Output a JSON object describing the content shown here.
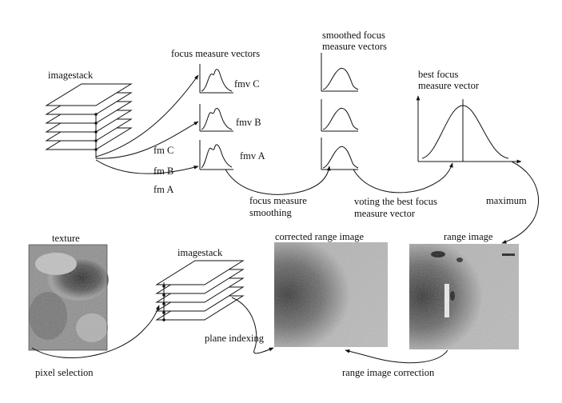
{
  "labels": {
    "imagestack_top": "imagestack",
    "focus_measure_vectors": "focus measure vectors",
    "smoothed_line1": "smoothed focus",
    "smoothed_line2": "measure vectors",
    "best_line1": "best focus",
    "best_line2": "measure vector",
    "fmv_c": "fmv C",
    "fmv_b": "fmv B",
    "fmv_a": "fmv A",
    "fm_c": "fm C",
    "fm_b": "fm B",
    "fm_a": "fm A",
    "fms_line1": "focus measure",
    "fms_line2": "smoothing",
    "voting_line1": "voting the best focus",
    "voting_line2": "measure vector",
    "maximum": "maximum",
    "texture": "texture",
    "imagestack_bottom": "imagestack",
    "corrected_range_image": "corrected range image",
    "range_image": "range image",
    "plane_indexing": "plane indexing",
    "pixel_selection": "pixel selection",
    "range_image_correction": "range image correction"
  }
}
